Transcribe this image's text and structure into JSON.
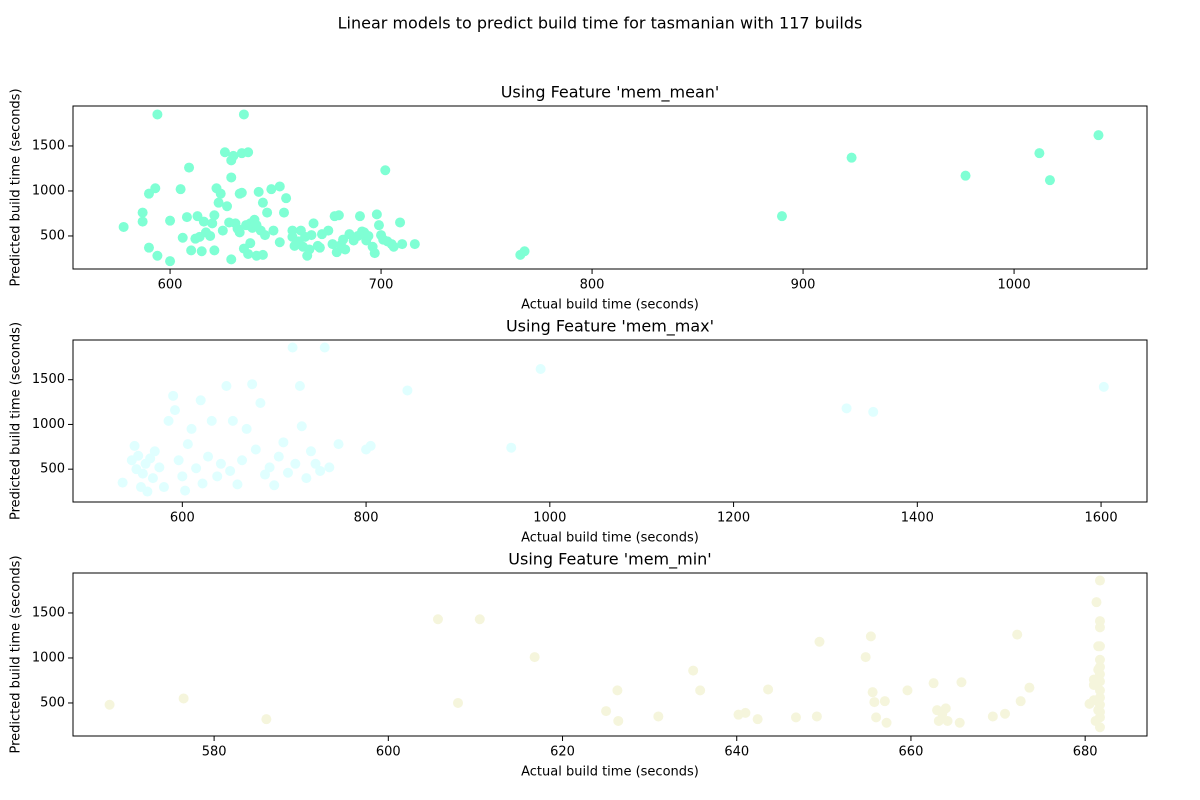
{
  "title": "Linear models to predict build time for tasmanian with 117 builds",
  "chart_data": [
    {
      "type": "scatter",
      "title": "Using Feature 'mem_mean'",
      "x_label": "Actual build time (seconds)",
      "y_label": "Predicted build time (seconds)",
      "color": "#7fffd4",
      "xlim": [
        554,
        1063
      ],
      "ylim": [
        133,
        1944
      ],
      "xticks": [
        600,
        700,
        800,
        900,
        1000
      ],
      "yticks": [
        500,
        1000,
        1500
      ],
      "x": [
        578,
        587,
        587,
        590,
        590,
        593,
        594,
        594,
        600,
        600,
        605,
        606,
        608,
        609,
        610,
        612,
        613,
        614,
        615,
        616,
        617,
        619,
        620,
        621,
        621,
        622,
        623,
        624,
        625,
        626,
        627,
        628,
        629,
        629,
        629,
        630,
        631,
        632,
        633,
        633,
        634,
        634,
        635,
        635,
        636,
        637,
        637,
        638,
        638,
        639,
        640,
        641,
        641,
        642,
        643,
        644,
        644,
        645,
        646,
        648,
        649,
        652,
        652,
        654,
        655,
        658,
        658,
        659,
        660,
        661,
        662,
        663,
        664,
        665,
        666,
        667,
        668,
        670,
        671,
        672,
        675,
        677,
        678,
        679,
        680,
        681,
        682,
        683,
        685,
        687,
        689,
        690,
        691,
        692,
        693,
        694,
        696,
        697,
        698,
        699,
        700,
        701,
        702,
        703,
        705,
        706,
        709,
        710,
        716,
        766,
        768,
        890,
        923,
        977,
        1012,
        1017,
        1040
      ],
      "y": [
        600,
        760,
        660,
        370,
        970,
        1030,
        1850,
        280,
        670,
        220,
        1020,
        480,
        710,
        1260,
        340,
        470,
        720,
        490,
        330,
        660,
        540,
        500,
        640,
        730,
        340,
        1030,
        870,
        970,
        560,
        1430,
        830,
        650,
        1150,
        1340,
        240,
        1390,
        640,
        580,
        540,
        970,
        1420,
        980,
        1850,
        360,
        620,
        1430,
        300,
        640,
        420,
        590,
        680,
        280,
        620,
        990,
        560,
        290,
        870,
        510,
        760,
        1020,
        560,
        1050,
        430,
        760,
        920,
        560,
        490,
        390,
        420,
        440,
        560,
        380,
        490,
        280,
        350,
        510,
        640,
        390,
        370,
        520,
        560,
        410,
        720,
        320,
        730,
        400,
        460,
        350,
        520,
        450,
        500,
        720,
        550,
        540,
        450,
        500,
        380,
        310,
        740,
        620,
        510,
        460,
        1230,
        440,
        410,
        380,
        650,
        410,
        410,
        290,
        330,
        720,
        1370,
        1170,
        1420,
        1120,
        1620
      ]
    },
    {
      "type": "scatter",
      "title": "Using Feature 'mem_max'",
      "x_label": "Actual build time (seconds)",
      "y_label": "Predicted build time (seconds)",
      "color": "#e0ffff",
      "xlim": [
        481,
        1650
      ],
      "ylim": [
        133,
        1944
      ],
      "xticks": [
        600,
        800,
        1000,
        1200,
        1400,
        1600
      ],
      "yticks": [
        500,
        1000,
        1500
      ],
      "x": [
        535,
        545,
        548,
        550,
        552,
        555,
        557,
        560,
        562,
        565,
        568,
        570,
        575,
        580,
        585,
        590,
        592,
        596,
        600,
        603,
        606,
        610,
        615,
        620,
        622,
        628,
        632,
        638,
        642,
        648,
        652,
        655,
        660,
        665,
        670,
        676,
        680,
        685,
        690,
        695,
        700,
        705,
        710,
        715,
        720,
        723,
        728,
        730,
        735,
        740,
        745,
        750,
        755,
        760,
        770,
        800,
        805,
        845,
        958,
        990,
        1323,
        1352,
        1603
      ],
      "y": [
        350,
        600,
        760,
        500,
        650,
        300,
        450,
        560,
        250,
        620,
        400,
        700,
        520,
        300,
        1040,
        1320,
        1160,
        600,
        420,
        260,
        780,
        950,
        510,
        1270,
        340,
        640,
        1040,
        420,
        560,
        1430,
        480,
        1040,
        330,
        600,
        950,
        1450,
        720,
        1240,
        440,
        520,
        320,
        640,
        800,
        460,
        1860,
        560,
        1430,
        980,
        400,
        700,
        560,
        480,
        1860,
        520,
        780,
        720,
        760,
        1380,
        740,
        1620,
        1180,
        1140,
        1420
      ]
    },
    {
      "type": "scatter",
      "title": "Using Feature 'mem_min'",
      "x_label": "Actual build time (seconds)",
      "y_label": "Predicted build time (seconds)",
      "color": "#f5f5dc",
      "xlim": [
        563.8,
        687.1
      ],
      "ylim": [
        133,
        1944
      ],
      "xticks": [
        580,
        600,
        620,
        640,
        660,
        680
      ],
      "yticks": [
        500,
        1000,
        1500
      ],
      "x": [
        568,
        576.5,
        586,
        605.7,
        608,
        610.5,
        616.8,
        625,
        626.3,
        626.4,
        631,
        635,
        635.8,
        640.2,
        641,
        642.4,
        643.6,
        646.8,
        649.2,
        649.5,
        654.8,
        655.4,
        655.6,
        655.8,
        656,
        657,
        657.2,
        659.6,
        662.6,
        663,
        663.2,
        663.6,
        664,
        664.2,
        665.6,
        665.8,
        669.4,
        670.8,
        672.2,
        672.6,
        673.6,
        680.5,
        681,
        681,
        681,
        681.2,
        681.3,
        681.5,
        681.5,
        681.5,
        681.7,
        681.7,
        681.7,
        681.7,
        681.7,
        681.7,
        681.7,
        681.7,
        681.7,
        681.7,
        681.7,
        681.7,
        681.7,
        681.7
      ],
      "y": [
        480,
        550,
        320,
        1430,
        500,
        1430,
        1010,
        410,
        640,
        300,
        350,
        860,
        640,
        370,
        390,
        320,
        650,
        340,
        350,
        1180,
        1010,
        1240,
        620,
        510,
        340,
        520,
        280,
        640,
        720,
        420,
        300,
        380,
        440,
        300,
        280,
        730,
        350,
        380,
        1260,
        520,
        670,
        490,
        530,
        700,
        760,
        300,
        1620,
        1130,
        870,
        420,
        1860,
        1410,
        1340,
        1130,
        980,
        900,
        820,
        740,
        640,
        560,
        480,
        400,
        340,
        230
      ]
    }
  ]
}
